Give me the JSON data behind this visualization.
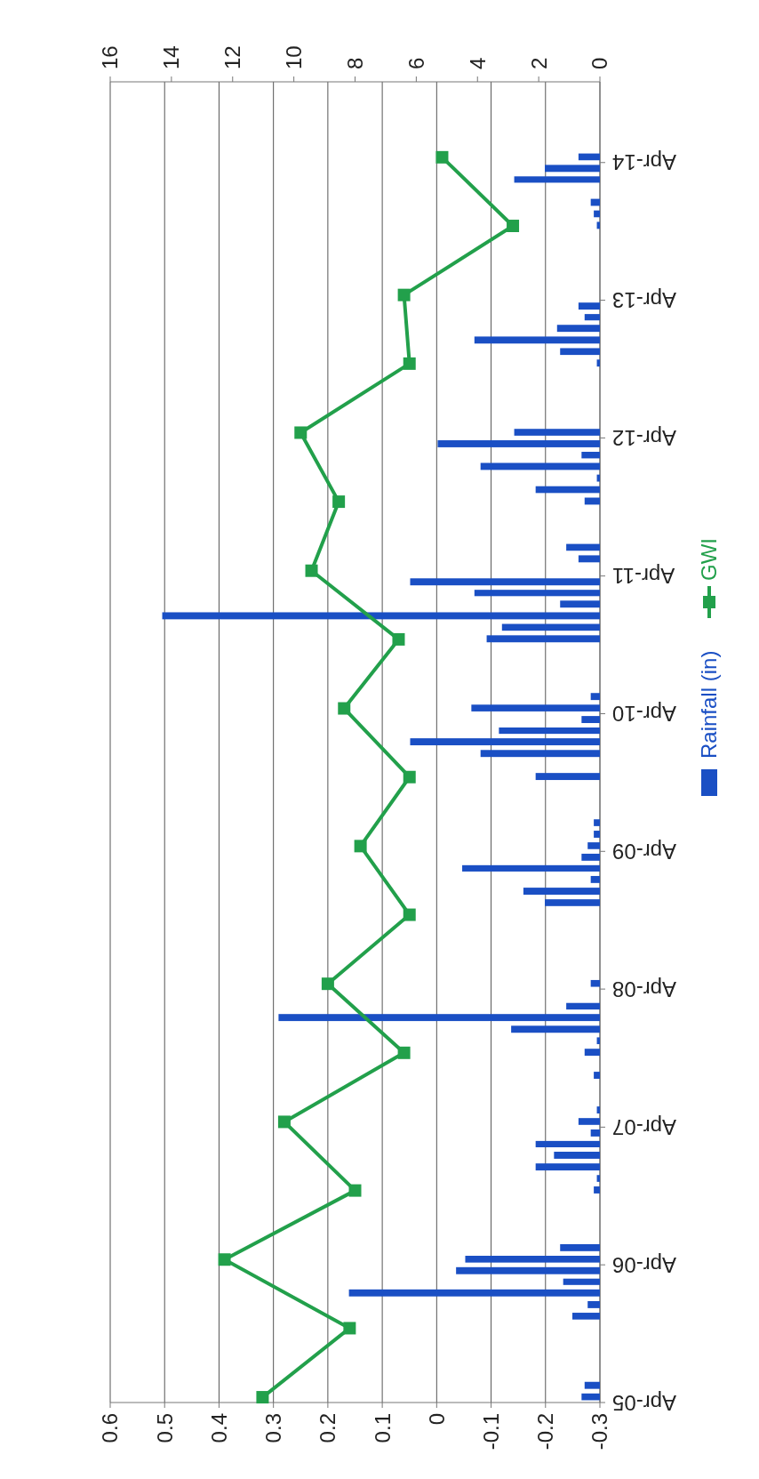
{
  "chart_data": {
    "type": "line",
    "orientation": "horizontal",
    "ylim": [
      "2005-04",
      "2014-11"
    ],
    "yticks": [
      {
        "value": "2005-04",
        "label": "Apr-05"
      },
      {
        "value": "2006-04",
        "label": "Apr-06"
      },
      {
        "value": "2007-04",
        "label": "Apr-07"
      },
      {
        "value": "2008-04",
        "label": "Apr-08"
      },
      {
        "value": "2009-04",
        "label": "Apr-09"
      },
      {
        "value": "2010-04",
        "label": "Apr-10"
      },
      {
        "value": "2011-04",
        "label": "Apr-11"
      },
      {
        "value": "2012-04",
        "label": "Apr-12"
      },
      {
        "value": "2013-04",
        "label": "Apr-13"
      },
      {
        "value": "2014-04",
        "label": "Apr-14"
      }
    ],
    "xlim": [
      0.6,
      -0.3
    ],
    "xticks": [
      -0.3,
      -0.2,
      -0.1,
      0,
      0.1,
      0.2,
      0.3,
      0.4,
      0.5,
      0.6
    ],
    "x2lim": [
      16,
      0
    ],
    "x2ticks": [
      0,
      2,
      4,
      6,
      8,
      10,
      12,
      14,
      16
    ],
    "grid": "x",
    "legend": "right",
    "series": [
      {
        "name": "Rainfall (in)",
        "type": "bar",
        "axis": "x2",
        "color": "#1a4fc4",
        "x": [
          "2005-04",
          "2005-05",
          "2005-11",
          "2005-12",
          "2006-01",
          "2006-02",
          "2006-03",
          "2006-04",
          "2006-05",
          "2006-10",
          "2006-11",
          "2006-12",
          "2007-01",
          "2007-02",
          "2007-03",
          "2007-04",
          "2007-05",
          "2007-08",
          "2007-10",
          "2007-11",
          "2007-12",
          "2008-01",
          "2008-02",
          "2008-04",
          "2008-11",
          "2008-12",
          "2009-01",
          "2009-02",
          "2009-03",
          "2009-04",
          "2009-05",
          "2009-06",
          "2009-10",
          "2009-12",
          "2010-01",
          "2010-02",
          "2010-03",
          "2010-04",
          "2010-05",
          "2010-10",
          "2010-11",
          "2010-12",
          "2011-01",
          "2011-02",
          "2011-03",
          "2011-05",
          "2011-06",
          "2011-10",
          "2011-11",
          "2011-12",
          "2012-01",
          "2012-02",
          "2012-03",
          "2012-04",
          "2012-10",
          "2012-11",
          "2012-12",
          "2013-01",
          "2013-02",
          "2013-03",
          "2013-10",
          "2013-11",
          "2013-12",
          "2014-02",
          "2014-03",
          "2014-04"
        ],
        "values": [
          0.6,
          0.5,
          0.9,
          0.4,
          8.2,
          1.2,
          4.7,
          4.4,
          1.3,
          0.2,
          0.1,
          2.1,
          1.5,
          2.1,
          0.3,
          0.7,
          0.1,
          0.2,
          0.5,
          0.1,
          2.9,
          10.5,
          1.1,
          0.3,
          1.8,
          2.5,
          0.3,
          4.5,
          0.6,
          0.4,
          0.2,
          0.2,
          2.1,
          3.9,
          6.2,
          3.3,
          0.6,
          4.2,
          0.3,
          3.7,
          3.2,
          14.3,
          1.3,
          4.1,
          6.2,
          0.7,
          1.1,
          0.5,
          2.1,
          0.1,
          3.9,
          0.6,
          5.3,
          2.8,
          0.1,
          1.3,
          4.1,
          1.4,
          0.5,
          0.7,
          0.1,
          0.2,
          0.3,
          2.8,
          1.8,
          0.7
        ]
      },
      {
        "name": "GWI",
        "color": "#22a04b",
        "marker": "square",
        "line_style": "solid",
        "x": [
          "2005-04-15",
          "2005-10-15",
          "2006-04-15",
          "2006-10-15",
          "2007-04-15",
          "2007-10-15",
          "2008-04-15",
          "2008-10-15",
          "2009-04-15",
          "2009-10-15",
          "2010-04-15",
          "2010-10-15",
          "2011-04-15",
          "2011-10-15",
          "2012-04-15",
          "2012-10-15",
          "2013-04-15",
          "2013-10-15",
          "2014-04-15"
        ],
        "values": [
          0.32,
          0.16,
          0.39,
          0.15,
          0.28,
          0.06,
          0.2,
          0.05,
          0.14,
          0.05,
          0.17,
          0.07,
          0.23,
          0.18,
          0.25,
          0.05,
          0.06,
          -0.14,
          -0.01
        ]
      }
    ]
  }
}
